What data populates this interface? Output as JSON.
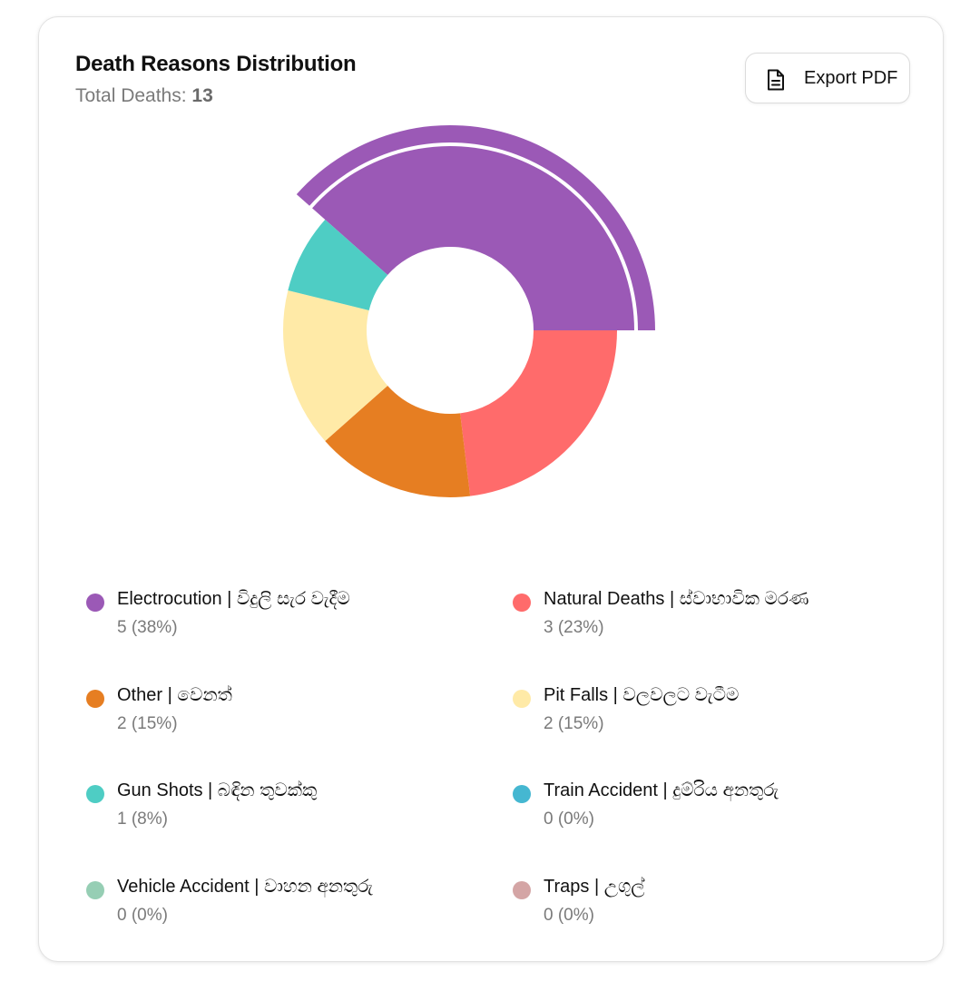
{
  "card": {
    "title": "Death Reasons Distribution",
    "total_label": "Total Deaths:",
    "total_value": "13"
  },
  "export_button": {
    "label": "Export PDF",
    "icon": "file-document-icon"
  },
  "chart_data": {
    "type": "pie",
    "variant": "donut",
    "total": 13,
    "highlighted": "Electrocution | විදුලි සැර වැදීම",
    "series": [
      {
        "name": "Electrocution | විදුලි සැර වැදීම",
        "value": 5,
        "percent": "38%",
        "display": "5 (38%)",
        "color": "#9b59b6"
      },
      {
        "name": "Natural Deaths | ස්වාභාවික මරණ",
        "value": 3,
        "percent": "23%",
        "display": "3 (23%)",
        "color": "#ff6b6b"
      },
      {
        "name": "Other | වෙනත්",
        "value": 2,
        "percent": "15%",
        "display": "2 (15%)",
        "color": "#e67e22"
      },
      {
        "name": "Pit Falls | වලවලට වැටීම",
        "value": 2,
        "percent": "15%",
        "display": "2 (15%)",
        "color": "#ffeaa7"
      },
      {
        "name": "Gun Shots | බඳින තුවක්කු",
        "value": 1,
        "percent": "8%",
        "display": "1 (8%)",
        "color": "#4ecdc4"
      },
      {
        "name": "Train Accident | දුම්රිය අනතුරු",
        "value": 0,
        "percent": "0%",
        "display": "0 (0%)",
        "color": "#45b7d1"
      },
      {
        "name": "Vehicle Accident | වාහන අනතුරු",
        "value": 0,
        "percent": "0%",
        "display": "0 (0%)",
        "color": "#96ceb4"
      },
      {
        "name": "Traps | උගුල්",
        "value": 0,
        "percent": "0%",
        "display": "0 (0%)",
        "color": "#d4a5a5"
      }
    ],
    "legend_placement": "bottom"
  }
}
